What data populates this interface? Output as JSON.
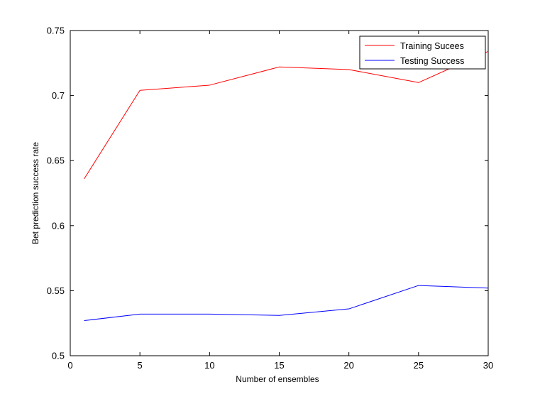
{
  "chart_data": {
    "type": "line",
    "title": "",
    "xlabel": "Number of ensembles",
    "ylabel": "Bet prediction success rate",
    "xlim": [
      0,
      30
    ],
    "ylim": [
      0.5,
      0.75
    ],
    "xticks": [
      0,
      5,
      10,
      15,
      20,
      25,
      30
    ],
    "yticks": [
      0.5,
      0.55,
      0.6,
      0.65,
      0.7,
      0.75
    ],
    "xtick_labels": [
      "0",
      "5",
      "10",
      "15",
      "20",
      "25",
      "30"
    ],
    "ytick_labels": [
      "0.5",
      "0.55",
      "0.6",
      "0.65",
      "0.7",
      "0.75"
    ],
    "grid": false,
    "legend_position": "top-right",
    "series": [
      {
        "name": "Training Sucees",
        "color": "#ff0000",
        "x": [
          1,
          5,
          10,
          15,
          20,
          25,
          30
        ],
        "values": [
          0.636,
          0.704,
          0.708,
          0.722,
          0.72,
          0.71,
          0.734
        ]
      },
      {
        "name": "Testing Success",
        "color": "#0000ff",
        "x": [
          1,
          5,
          10,
          15,
          20,
          25,
          30
        ],
        "values": [
          0.527,
          0.532,
          0.532,
          0.531,
          0.536,
          0.554,
          0.552
        ]
      }
    ]
  }
}
